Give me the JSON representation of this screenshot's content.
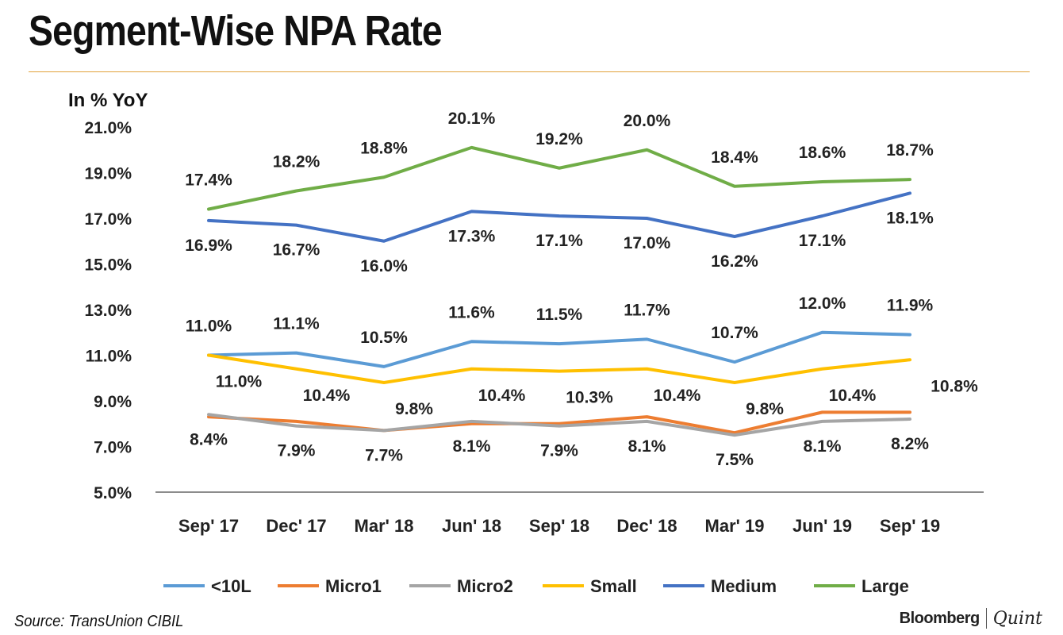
{
  "header": {
    "title": "Segment-Wise NPA Rate"
  },
  "footer": {
    "source": "Source: TransUnion CIBIL",
    "brand_left": "Bloomberg",
    "brand_right": "Quint"
  },
  "chart_data": {
    "type": "line",
    "ylabel": "In % YoY",
    "ylim": [
      5.0,
      21.0
    ],
    "yticks": [
      "5.0%",
      "7.0%",
      "9.0%",
      "11.0%",
      "13.0%",
      "15.0%",
      "17.0%",
      "19.0%",
      "21.0%"
    ],
    "categories": [
      "Sep' 17",
      "Dec' 17",
      "Mar' 18",
      "Jun' 18",
      "Sep' 18",
      "Dec' 18",
      "Mar' 19",
      "Jun' 19",
      "Sep' 19"
    ],
    "legend_position": "bottom",
    "grid": false,
    "series": [
      {
        "name": "<10L",
        "color": "#5b9bd5",
        "values": [
          11.0,
          11.1,
          10.5,
          11.6,
          11.5,
          11.7,
          10.7,
          12.0,
          11.9
        ],
        "labels": [
          "11.0%",
          "11.1%",
          "10.5%",
          "11.6%",
          "11.5%",
          "11.7%",
          "10.7%",
          "12.0%",
          "11.9%"
        ]
      },
      {
        "name": "Micro1",
        "color": "#ed7d31",
        "values": [
          8.3,
          8.1,
          7.7,
          8.0,
          8.0,
          8.3,
          7.6,
          8.5,
          8.5
        ],
        "labels": []
      },
      {
        "name": "Micro2",
        "color": "#a5a5a5",
        "values": [
          8.4,
          7.9,
          7.7,
          8.1,
          7.9,
          8.1,
          7.5,
          8.1,
          8.2
        ],
        "labels": [
          "8.4%",
          "7.9%",
          "7.7%",
          "8.1%",
          "7.9%",
          "8.1%",
          "7.5%",
          "8.1%",
          "8.2%"
        ]
      },
      {
        "name": "Small",
        "color": "#ffc000",
        "values": [
          11.0,
          10.4,
          9.8,
          10.4,
          10.3,
          10.4,
          9.8,
          10.4,
          10.8
        ],
        "labels": [
          "11.0%",
          "10.4%",
          "9.8%",
          "10.4%",
          "10.3%",
          "10.4%",
          "9.8%",
          "10.4%",
          "10.8%"
        ]
      },
      {
        "name": "Medium",
        "color": "#4472c4",
        "values": [
          16.9,
          16.7,
          16.0,
          17.3,
          17.1,
          17.0,
          16.2,
          17.1,
          18.1
        ],
        "labels": [
          "16.9%",
          "16.7%",
          "16.0%",
          "17.3%",
          "17.1%",
          "17.0%",
          "16.2%",
          "17.1%",
          "18.1%"
        ]
      },
      {
        "name": "Large",
        "color": "#70ad47",
        "values": [
          17.4,
          18.2,
          18.8,
          20.1,
          19.2,
          20.0,
          18.4,
          18.6,
          18.7
        ],
        "labels": [
          "17.4%",
          "18.2%",
          "18.8%",
          "20.1%",
          "19.2%",
          "20.0%",
          "18.4%",
          "18.6%",
          "18.7%"
        ]
      }
    ]
  }
}
